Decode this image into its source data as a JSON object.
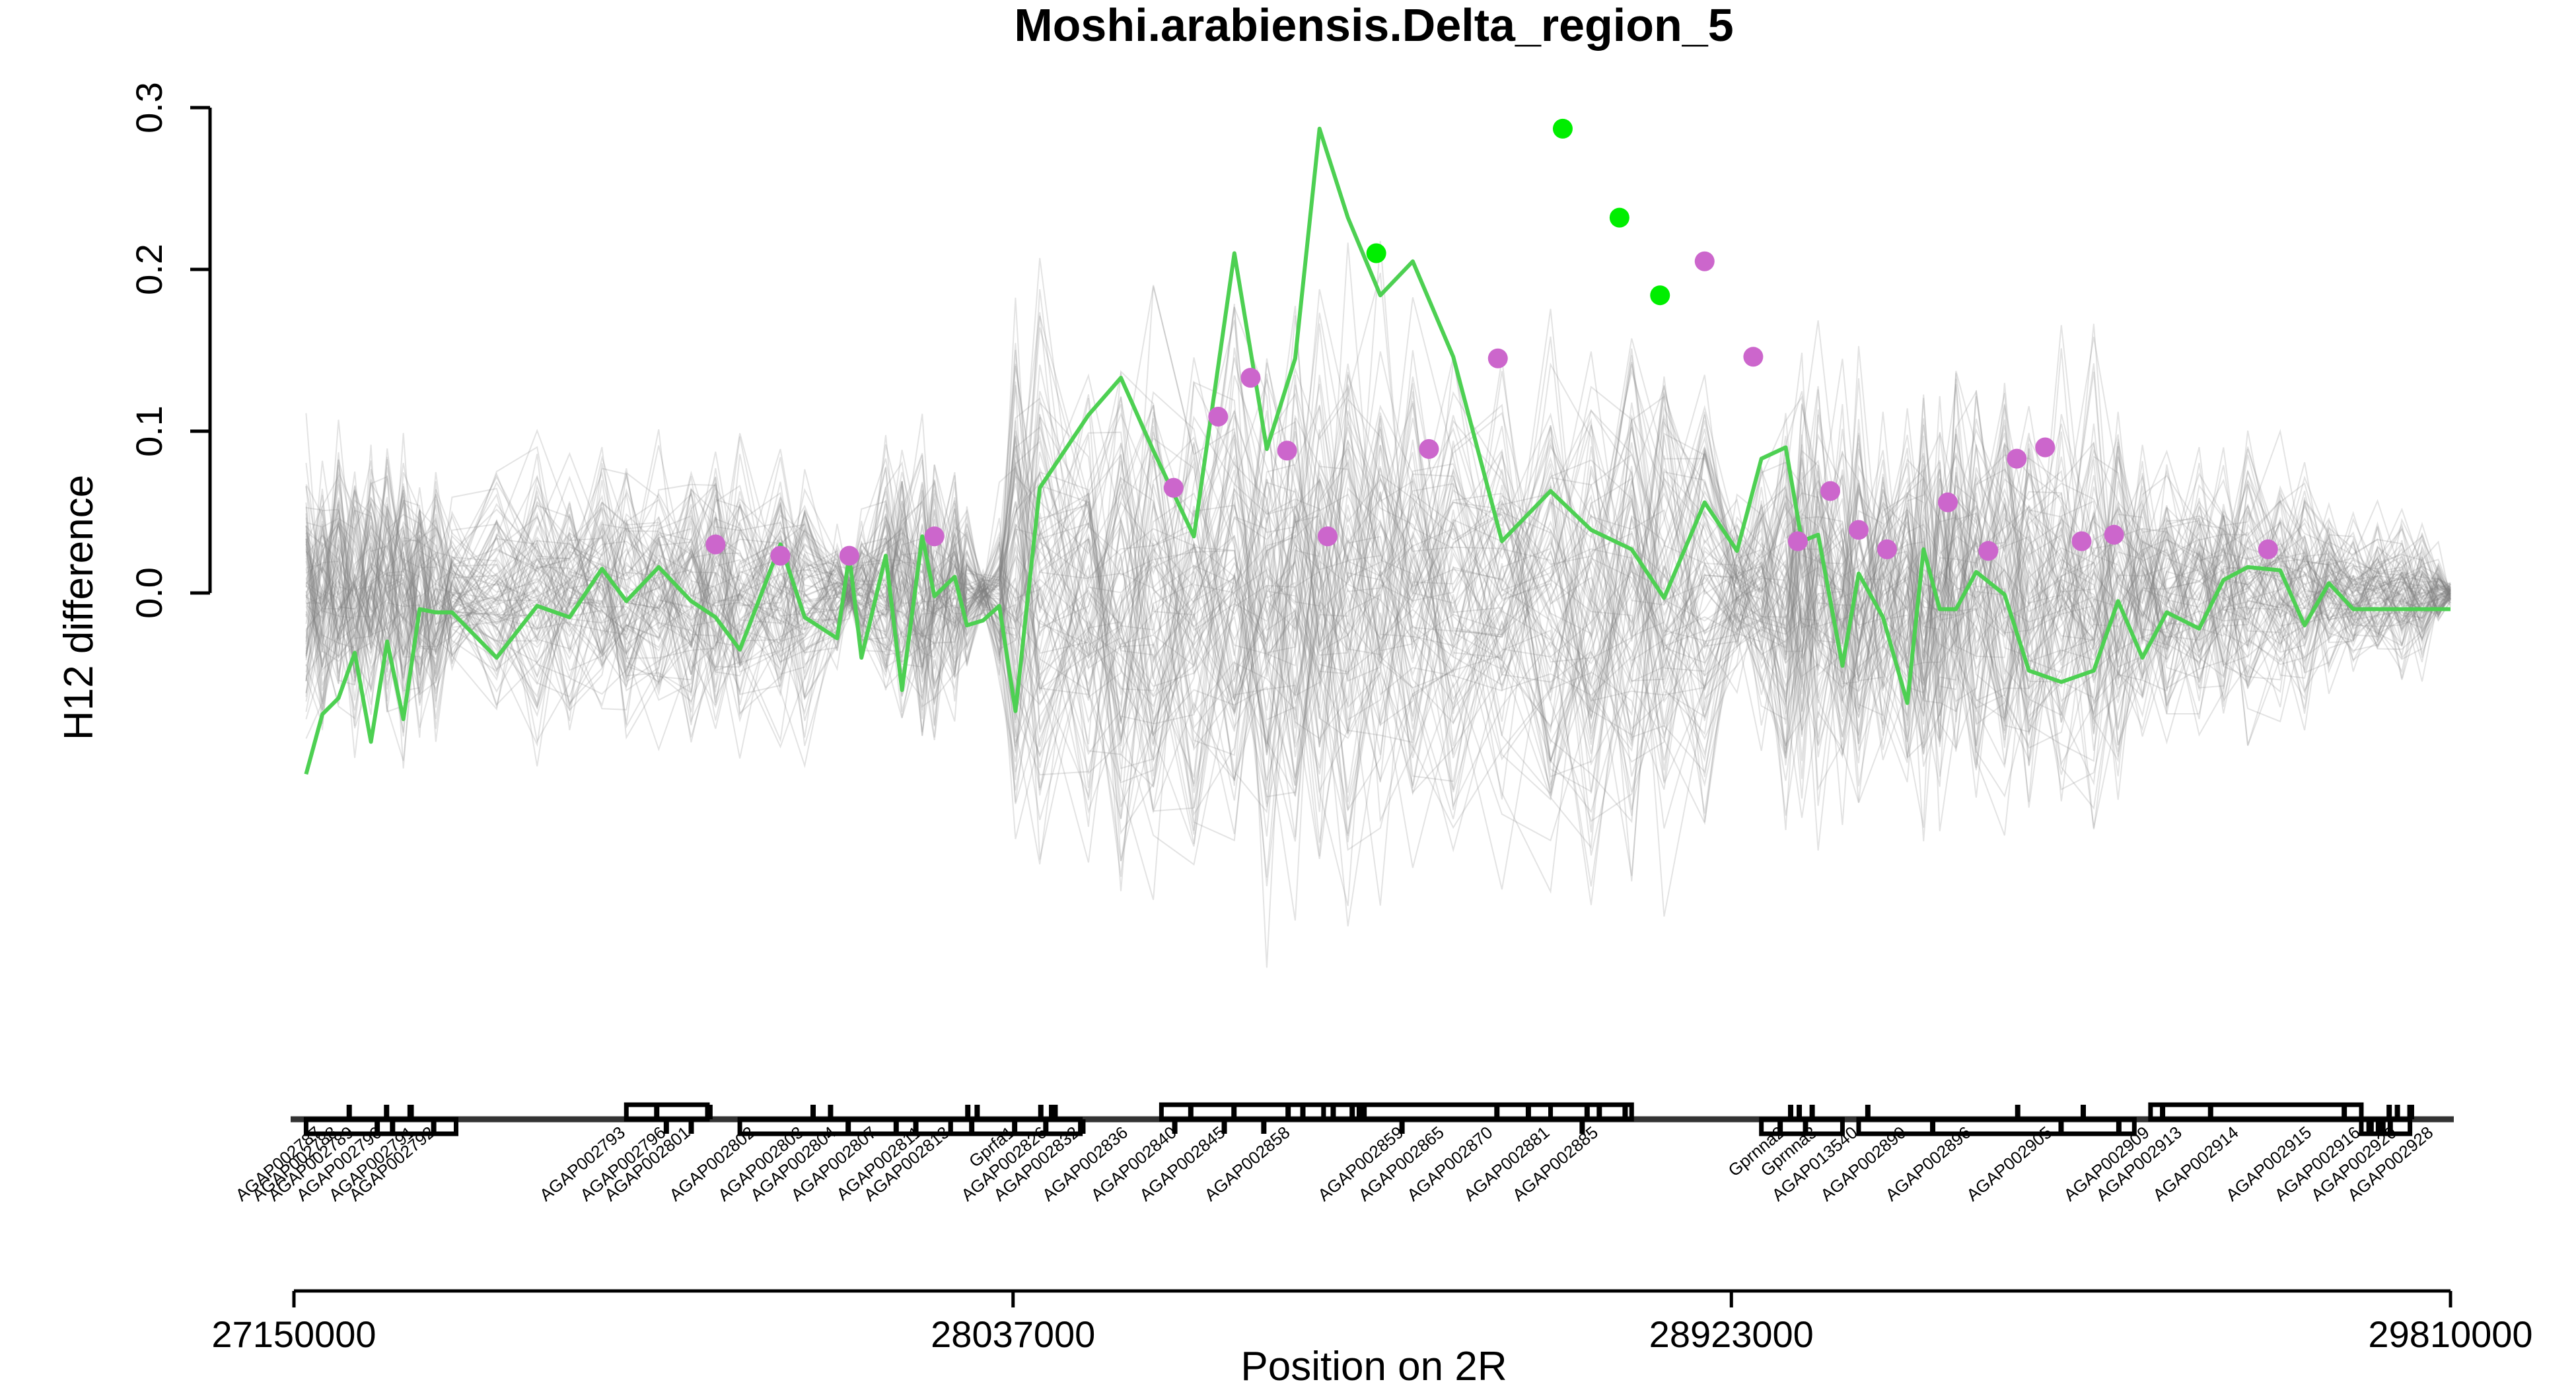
{
  "chart_data": {
    "type": "line",
    "title": "Moshi.arabiensis.Delta_region_5",
    "xlabel": "Position on 2R",
    "ylabel": "H12 difference",
    "xlim": [
      27150000,
      29810000
    ],
    "ylim": [
      -0.3,
      0.3
    ],
    "y_ticks": [
      {
        "value": 0.0,
        "label": "0.0"
      },
      {
        "value": 0.1,
        "label": "0.1"
      },
      {
        "value": 0.2,
        "label": "0.2"
      },
      {
        "value": 0.3,
        "label": "0.3"
      }
    ],
    "x_ticks": [
      {
        "value": 27150000,
        "label": "27150000"
      },
      {
        "value": 28037000,
        "label": "28037000"
      },
      {
        "value": 28923000,
        "label": "28923000"
      },
      {
        "value": 29810000,
        "label": "29810000"
      }
    ],
    "grid": false,
    "legend": "none",
    "colors": {
      "main_line": "#4dd052",
      "peak_points": "#00ee00",
      "significant_points": "#cc66cc",
      "null_lines": "#808080",
      "gene_track": "#000000"
    },
    "background_series_count": 90,
    "series": [
      {
        "x": [
          27165000,
          27185000,
          27205000,
          27225000,
          27245000,
          27265000,
          27285000,
          27305000,
          27325000,
          27345000,
          27400000,
          27450000,
          27490000,
          27530000,
          27560000,
          27600000,
          27640000,
          27670000,
          27700000,
          27750000,
          27780000,
          27820000,
          27835000,
          27850000,
          27880000,
          27900000,
          27925000,
          27940000,
          27965000,
          27980000,
          28000000,
          28020000,
          28040000,
          28070000,
          28130000,
          28170000,
          28210000,
          28260000,
          28310000,
          28350000,
          28385000,
          28415000,
          28450000,
          28490000,
          28530000,
          28580000,
          28640000,
          28700000,
          28750000,
          28800000,
          28840000,
          28890000,
          28930000,
          28960000,
          28990000,
          29010000,
          29030000,
          29060000,
          29080000,
          29110000,
          29140000,
          29160000,
          29180000,
          29200000,
          29225000,
          29260000,
          29290000,
          29330000,
          29370000,
          29400000,
          29430000,
          29460000,
          29500000,
          29530000,
          29560000,
          29600000,
          29630000,
          29660000,
          29690000,
          29720000,
          29750000,
          29775000,
          29795000,
          29810000
        ],
        "y": [
          -0.112,
          -0.075,
          -0.065,
          -0.037,
          -0.092,
          -0.03,
          -0.078,
          -0.01,
          -0.012,
          -0.012,
          -0.04,
          -0.008,
          -0.015,
          0.015,
          -0.005,
          0.016,
          -0.005,
          -0.015,
          -0.035,
          0.03,
          -0.015,
          -0.028,
          0.023,
          -0.04,
          0.023,
          -0.06,
          0.035,
          -0.002,
          0.01,
          -0.02,
          -0.017,
          -0.008,
          -0.073,
          0.065,
          0.11,
          0.133,
          0.088,
          0.035,
          0.21,
          0.089,
          0.145,
          0.287,
          0.232,
          0.184,
          0.205,
          0.146,
          0.032,
          0.063,
          0.039,
          0.027,
          -0.003,
          0.056,
          0.026,
          0.083,
          0.09,
          0.032,
          0.036,
          -0.045,
          0.012,
          -0.015,
          -0.068,
          0.027,
          -0.01,
          -0.01,
          0.013,
          -0.001,
          -0.048,
          -0.055,
          -0.048,
          -0.005,
          -0.04,
          -0.012,
          -0.022,
          0.008,
          0.016,
          0.014,
          -0.02,
          0.006,
          -0.01,
          -0.01,
          -0.01,
          -0.01,
          -0.01,
          -0.01
        ],
        "color": "#4dd052"
      }
    ],
    "highlighted_points": [
      {
        "x": 27670000,
        "y": 0.03,
        "color": "#cc66cc"
      },
      {
        "x": 27750000,
        "y": 0.023,
        "color": "#cc66cc"
      },
      {
        "x": 27835000,
        "y": 0.023,
        "color": "#cc66cc"
      },
      {
        "x": 27940000,
        "y": 0.035,
        "color": "#cc66cc"
      },
      {
        "x": 28235000,
        "y": 0.065,
        "color": "#cc66cc"
      },
      {
        "x": 28290000,
        "y": 0.109,
        "color": "#cc66cc"
      },
      {
        "x": 28330000,
        "y": 0.133,
        "color": "#cc66cc"
      },
      {
        "x": 28375000,
        "y": 0.088,
        "color": "#cc66cc"
      },
      {
        "x": 28425000,
        "y": 0.035,
        "color": "#cc66cc"
      },
      {
        "x": 28485000,
        "y": 0.21,
        "color": "#00ee00"
      },
      {
        "x": 28550000,
        "y": 0.089,
        "color": "#cc66cc"
      },
      {
        "x": 28635000,
        "y": 0.145,
        "color": "#cc66cc"
      },
      {
        "x": 28715000,
        "y": 0.287,
        "color": "#00ee00"
      },
      {
        "x": 28785000,
        "y": 0.232,
        "color": "#00ee00"
      },
      {
        "x": 28835000,
        "y": 0.184,
        "color": "#00ee00"
      },
      {
        "x": 28890000,
        "y": 0.205,
        "color": "#cc66cc"
      },
      {
        "x": 28950000,
        "y": 0.146,
        "color": "#cc66cc"
      },
      {
        "x": 29005000,
        "y": 0.032,
        "color": "#cc66cc"
      },
      {
        "x": 29045000,
        "y": 0.063,
        "color": "#cc66cc"
      },
      {
        "x": 29080000,
        "y": 0.039,
        "color": "#cc66cc"
      },
      {
        "x": 29115000,
        "y": 0.027,
        "color": "#cc66cc"
      },
      {
        "x": 29190000,
        "y": 0.056,
        "color": "#cc66cc"
      },
      {
        "x": 29240000,
        "y": 0.026,
        "color": "#cc66cc"
      },
      {
        "x": 29275000,
        "y": 0.083,
        "color": "#cc66cc"
      },
      {
        "x": 29310000,
        "y": 0.09,
        "color": "#cc66cc"
      },
      {
        "x": 29355000,
        "y": 0.032,
        "color": "#cc66cc"
      },
      {
        "x": 29395000,
        "y": 0.036,
        "color": "#cc66cc"
      },
      {
        "x": 29585000,
        "y": 0.027,
        "color": "#cc66cc"
      }
    ],
    "gene_labels": [
      {
        "pos": 27185000,
        "label": "AGAP002787"
      },
      {
        "pos": 27205000,
        "label": "AGAP002788"
      },
      {
        "pos": 27225000,
        "label": "AGAP002789"
      },
      {
        "pos": 27260000,
        "label": "AGAP002790"
      },
      {
        "pos": 27300000,
        "label": "AGAP002791"
      },
      {
        "pos": 27325000,
        "label": "AGAP002792"
      },
      {
        "pos": 27560000,
        "label": "AGAP002793"
      },
      {
        "pos": 27610000,
        "label": "AGAP002796"
      },
      {
        "pos": 27640000,
        "label": "AGAP002801"
      },
      {
        "pos": 27720000,
        "label": "AGAP002802"
      },
      {
        "pos": 27780000,
        "label": "AGAP002803"
      },
      {
        "pos": 27820000,
        "label": "AGAP002804"
      },
      {
        "pos": 27870000,
        "label": "AGAP002807"
      },
      {
        "pos": 27925000,
        "label": "AGAP002811"
      },
      {
        "pos": 27960000,
        "label": "AGAP002813"
      },
      {
        "pos": 28040000,
        "label": "Gprfa1"
      },
      {
        "pos": 28080000,
        "label": "AGAP002826"
      },
      {
        "pos": 28120000,
        "label": "AGAP002832"
      },
      {
        "pos": 28180000,
        "label": "AGAP002836"
      },
      {
        "pos": 28240000,
        "label": "AGAP002840"
      },
      {
        "pos": 28300000,
        "label": "AGAP002845"
      },
      {
        "pos": 28380000,
        "label": "AGAP002858"
      },
      {
        "pos": 28520000,
        "label": "AGAP002859"
      },
      {
        "pos": 28570000,
        "label": "AGAP002865"
      },
      {
        "pos": 28630000,
        "label": "AGAP002870"
      },
      {
        "pos": 28700000,
        "label": "AGAP002881"
      },
      {
        "pos": 28760000,
        "label": "AGAP002885"
      },
      {
        "pos": 28990000,
        "label": "Gprnna2"
      },
      {
        "pos": 29030000,
        "label": "Gprnna3"
      },
      {
        "pos": 29080000,
        "label": "AGAP013540"
      },
      {
        "pos": 29140000,
        "label": "AGAP002890"
      },
      {
        "pos": 29220000,
        "label": "AGAP002896"
      },
      {
        "pos": 29320000,
        "label": "AGAP002905"
      },
      {
        "pos": 29440000,
        "label": "AGAP002909"
      },
      {
        "pos": 29480000,
        "label": "AGAP002913"
      },
      {
        "pos": 29550000,
        "label": "AGAP002914"
      },
      {
        "pos": 29640000,
        "label": "AGAP002915"
      },
      {
        "pos": 29700000,
        "label": "AGAP002916"
      },
      {
        "pos": 29745000,
        "label": "AGAP002920"
      },
      {
        "pos": 29790000,
        "label": "AGAP002928"
      }
    ]
  }
}
